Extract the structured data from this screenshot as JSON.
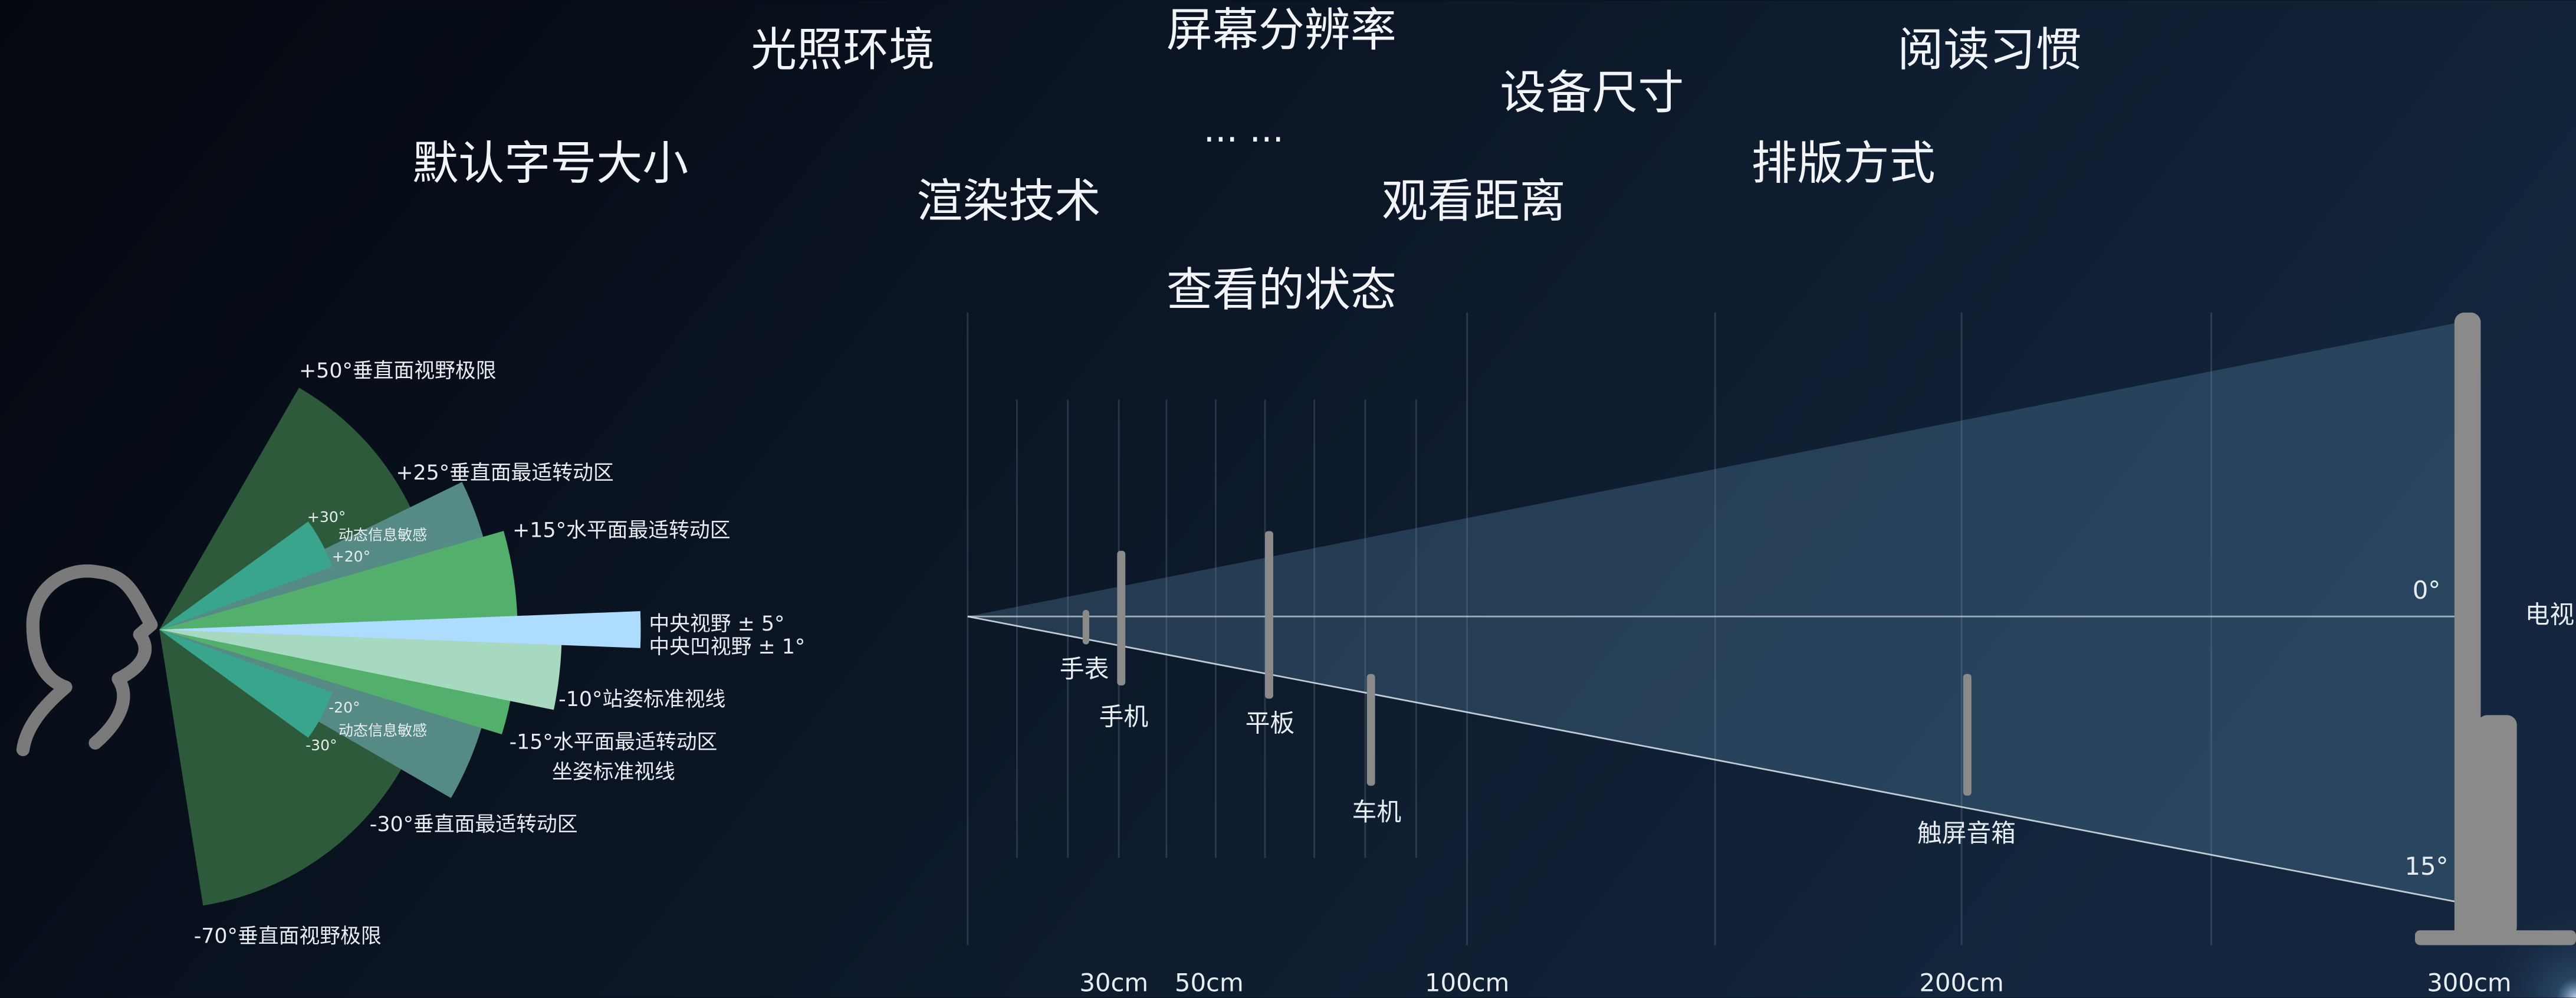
{
  "factors": [
    "光照环境",
    "屏幕分辨率",
    "阅读习惯",
    "设备尺寸",
    "默认字号大小",
    "... ...",
    "排版方式",
    "渲染技术",
    "观看距离",
    "查看的状态"
  ],
  "vision_labels": [
    "+50°垂直面视野极限",
    "+25°垂直面最适转动区",
    "+30°",
    "动态信息敏感",
    "+20°",
    "+15°水平面最适转动区",
    "中央视野 ± 5°",
    "中央凹视野 ± 1°",
    "-10°站姿标准视线",
    "-20°",
    "动态信息敏感",
    "-30°",
    "-15°水平面最适转动区",
    "坐姿标准视线",
    "-30°垂直面最适转动区",
    "-70°垂直面视野极限"
  ],
  "devices": [
    "手表",
    "手机",
    "平板",
    "车机",
    "触屏音箱",
    "电视"
  ],
  "angles": [
    "0°",
    "15°"
  ],
  "distances": [
    "30cm",
    "50cm",
    "100cm",
    "200cm",
    "300cm"
  ]
}
